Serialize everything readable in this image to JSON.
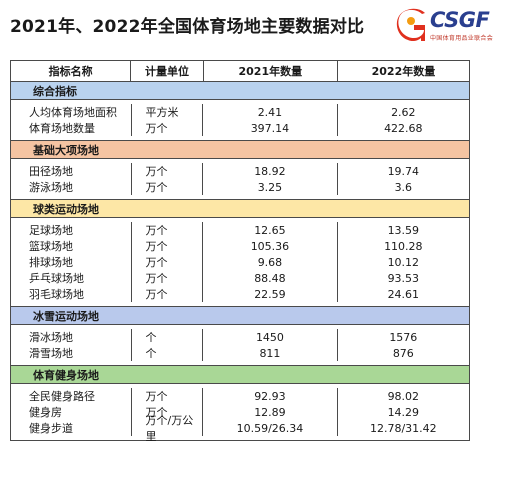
{
  "title": "2021年、2022年全国体育场地主要数据对比",
  "logo": {
    "text": "CSGF",
    "subtitle": "中国体育用品业联合会"
  },
  "columns": [
    "指标名称",
    "计量单位",
    "2021年数量",
    "2022年数量"
  ],
  "sections": [
    {
      "name": "综合指标",
      "color": "#b9d2ee",
      "rows": [
        {
          "name": "人均体育场地面积",
          "unit": "平方米",
          "y2021": "2.41",
          "y2022": "2.62"
        },
        {
          "name": "体育场地数量",
          "unit": "万个",
          "y2021": "397.14",
          "y2022": "422.68"
        }
      ]
    },
    {
      "name": "基础大项场地",
      "color": "#f5c4a2",
      "rows": [
        {
          "name": "田径场地",
          "unit": "万个",
          "y2021": "18.92",
          "y2022": "19.74"
        },
        {
          "name": "游泳场地",
          "unit": "万个",
          "y2021": "3.25",
          "y2022": "3.6"
        }
      ]
    },
    {
      "name": "球类运动场地",
      "color": "#fde7a6",
      "rows": [
        {
          "name": "足球场地",
          "unit": "万个",
          "y2021": "12.65",
          "y2022": "13.59"
        },
        {
          "name": "篮球场地",
          "unit": "万个",
          "y2021": "105.36",
          "y2022": "110.28"
        },
        {
          "name": "排球场地",
          "unit": "万个",
          "y2021": "9.68",
          "y2022": "10.12"
        },
        {
          "name": "乒乓球场地",
          "unit": "万个",
          "y2021": "88.48",
          "y2022": "93.53"
        },
        {
          "name": "羽毛球场地",
          "unit": "万个",
          "y2021": "22.59",
          "y2022": "24.61"
        }
      ]
    },
    {
      "name": "冰雪运动场地",
      "color": "#b9c9ec",
      "rows": [
        {
          "name": "滑冰场地",
          "unit": "个",
          "y2021": "1450",
          "y2022": "1576"
        },
        {
          "name": "滑雪场地",
          "unit": "个",
          "y2021": "811",
          "y2022": "876"
        }
      ]
    },
    {
      "name": "体育健身场地",
      "color": "#a9d796",
      "rows": [
        {
          "name": "全民健身路径",
          "unit": "万个",
          "y2021": "92.93",
          "y2022": "98.02"
        },
        {
          "name": "健身房",
          "unit": "万个",
          "y2021": "12.89",
          "y2022": "14.29"
        },
        {
          "name": "健身步道",
          "unit": "万个/万公里",
          "y2021": "10.59/26.34",
          "y2022": "12.78/31.42"
        }
      ]
    }
  ]
}
